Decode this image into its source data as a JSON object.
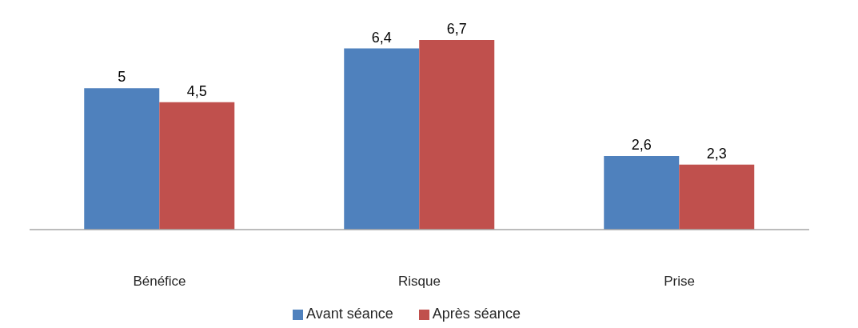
{
  "chart_data": {
    "type": "bar",
    "categories": [
      "Bénéfice",
      "Risque",
      "Prise"
    ],
    "series": [
      {
        "name": "Avant séance",
        "color": "#4f81bd",
        "values": [
          5,
          6.4,
          2.6
        ],
        "value_labels": [
          "5",
          "6,4",
          "2,6"
        ]
      },
      {
        "name": "Après séance",
        "color": "#c0504d",
        "values": [
          4.5,
          6.7,
          2.3
        ],
        "value_labels": [
          "4,5",
          "6,7",
          "2,3"
        ]
      }
    ],
    "legend": "bottom"
  }
}
